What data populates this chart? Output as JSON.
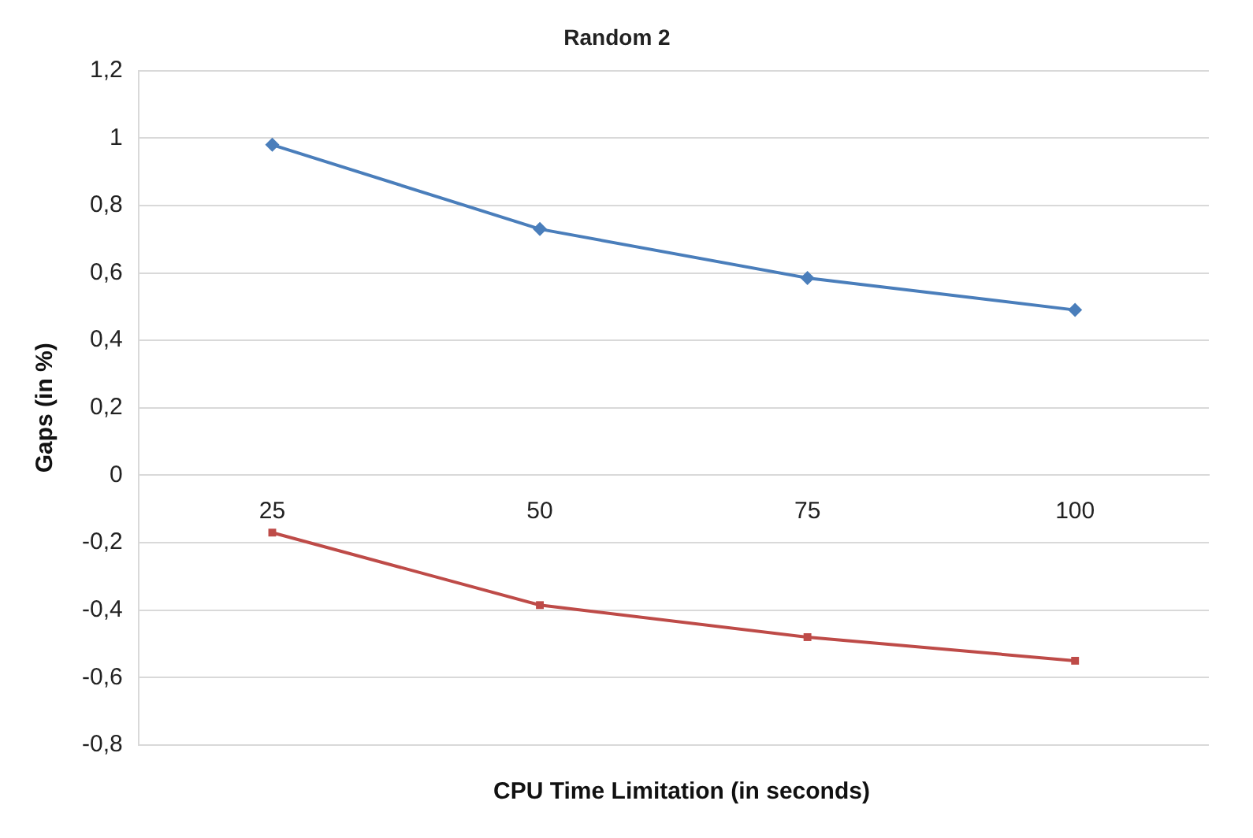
{
  "chart_data": {
    "type": "line",
    "title": "Random 2",
    "xlabel": "CPU Time Limitation (in seconds)",
    "ylabel": "Gaps (in %)",
    "categories": [
      "25",
      "50",
      "75",
      "100"
    ],
    "series": [
      {
        "color": "#4a7ebb",
        "marker": "diamond",
        "values": [
          0.98,
          0.73,
          0.585,
          0.49
        ]
      },
      {
        "color": "#be4b48",
        "marker": "square",
        "values": [
          -0.17,
          -0.385,
          -0.48,
          -0.55
        ]
      }
    ],
    "ylim": [
      -0.8,
      1.2
    ],
    "yticks": [
      {
        "value": -0.8,
        "label": "-0,8"
      },
      {
        "value": -0.6,
        "label": "-0,6"
      },
      {
        "value": -0.4,
        "label": "-0,4"
      },
      {
        "value": -0.2,
        "label": "-0,2"
      },
      0,
      {
        "value": 0.2,
        "label": "0,2"
      },
      {
        "value": 0.4,
        "label": "0,4"
      },
      {
        "value": 0.6,
        "label": "0,6"
      },
      {
        "value": 0.8,
        "label": "0,8"
      },
      1,
      {
        "value": 1.2,
        "label": "1,2"
      }
    ],
    "grid": "y",
    "line_style": "solid"
  }
}
